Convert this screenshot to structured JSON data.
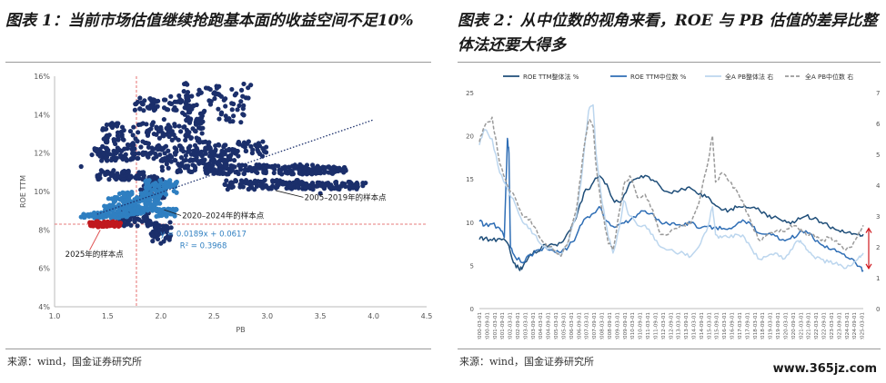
{
  "panel_left": {
    "title": "图表 1：当前市场估值继续抢跑基本面的收益空间不足10%",
    "source": "来源：wind，国金证券研究所"
  },
  "panel_right": {
    "title": "图表 2：从中位数的视角来看，ROE 与 PB 估值的差异比整体法还要大得多",
    "source": "来源：wind，国金证券研究所"
  },
  "watermark": "www.365jz.com",
  "chart_data": [
    {
      "type": "scatter",
      "xlabel": "PB",
      "ylabel": "ROE TTM",
      "xlim": [
        1.0,
        4.5
      ],
      "ylim": [
        4,
        16
      ],
      "x_ticks": [
        "1.0",
        "1.5",
        "2.0",
        "2.5",
        "3.0",
        "3.5",
        "4.0",
        "4.5"
      ],
      "y_ticks": [
        "4%",
        "6%",
        "8%",
        "10%",
        "12%",
        "14%",
        "16%"
      ],
      "colors": {
        "2005_2019": "#1b2f6b",
        "2020_2024": "#2f7fc1",
        "2025": "#c0181e",
        "ref": "#e05050"
      },
      "series": [
        {
          "name": "2005–2019年的样本点",
          "color": "#1b2f6b",
          "clusters": [
            {
              "xr": [
                1.75,
                2.3
              ],
              "yr": [
                14.2,
                15.0
              ]
            },
            {
              "xr": [
                2.2,
                2.85
              ],
              "yr": [
                13.6,
                15.7
              ]
            },
            {
              "xr": [
                1.9,
                2.4
              ],
              "yr": [
                12.6,
                13.8
              ]
            },
            {
              "xr": [
                1.45,
                1.9
              ],
              "yr": [
                12.2,
                13.6
              ]
            },
            {
              "xr": [
                1.35,
                1.75
              ],
              "yr": [
                11.6,
                12.3
              ]
            },
            {
              "xr": [
                1.75,
                2.4
              ],
              "yr": [
                11.6,
                12.4
              ]
            },
            {
              "xr": [
                2.3,
                3.0
              ],
              "yr": [
                11.8,
                12.6
              ]
            },
            {
              "xr": [
                2.0,
                2.7
              ],
              "yr": [
                11.0,
                11.7
              ]
            },
            {
              "xr": [
                2.4,
                3.0
              ],
              "yr": [
                10.9,
                11.4
              ]
            },
            {
              "xr": [
                2.9,
                3.5
              ],
              "yr": [
                10.9,
                11.4
              ]
            },
            {
              "xr": [
                3.3,
                3.75
              ],
              "yr": [
                10.9,
                11.3
              ]
            },
            {
              "xr": [
                1.4,
                1.85
              ],
              "yr": [
                10.6,
                11.1
              ]
            },
            {
              "xr": [
                2.6,
                3.3
              ],
              "yr": [
                10.1,
                10.6
              ]
            },
            {
              "xr": [
                3.2,
                3.95
              ],
              "yr": [
                10.1,
                10.5
              ]
            },
            {
              "xr": [
                1.8,
                2.05
              ],
              "yr": [
                9.6,
                10.8
              ]
            },
            {
              "xr": [
                1.6,
                1.9
              ],
              "yr": [
                8.2,
                9.0
              ]
            },
            {
              "xr": [
                1.9,
                2.1
              ],
              "yr": [
                7.4,
                8.4
              ]
            }
          ],
          "extreme_points": [
            [
              2.78,
              15.6
            ],
            [
              2.82,
              15.4
            ],
            [
              3.9,
              10.3
            ],
            [
              3.5,
              9.9
            ],
            [
              2.0,
              7.3
            ],
            [
              1.25,
              11.3
            ]
          ]
        },
        {
          "name": "2020–2024年的样本点",
          "color": "#2f7fc1",
          "clusters": [
            {
              "xr": [
                1.25,
                1.7
              ],
              "yr": [
                8.6,
                8.9
              ]
            },
            {
              "xr": [
                1.45,
                1.85
              ],
              "yr": [
                8.8,
                9.3
              ]
            },
            {
              "xr": [
                1.5,
                1.95
              ],
              "yr": [
                9.0,
                9.7
              ]
            },
            {
              "xr": [
                1.6,
                2.0
              ],
              "yr": [
                9.3,
                10.0
              ]
            },
            {
              "xr": [
                1.85,
                2.15
              ],
              "yr": [
                9.8,
                10.6
              ]
            },
            {
              "xr": [
                1.95,
                2.15
              ],
              "yr": [
                8.7,
                9.1
              ]
            }
          ]
        },
        {
          "name": "2025年的样本点",
          "color": "#c0181e",
          "clusters": [
            {
              "xr": [
                1.33,
                1.62
              ],
              "yr": [
                8.15,
                8.45
              ]
            }
          ]
        }
      ],
      "trendline": {
        "equation": "y = 0.0189x + 0.0617",
        "r2": "R² = 0.3968",
        "slope": 0.0189,
        "intercept": 0.0617,
        "x_range": [
          1.4,
          4.0
        ]
      },
      "reference_lines": {
        "x": 1.77,
        "y": 8.3
      },
      "annotations": {
        "a2005": "2005–2019年的样本点",
        "a2020": "2020–2024年的样本点",
        "a2025": "2025年的样本点"
      }
    },
    {
      "type": "line",
      "legend": [
        "ROE TTM整体法 %",
        "ROE TTM中位数 %",
        "全A PB整体法 右",
        "全A PB中位数 右"
      ],
      "legend_placement": "top",
      "left_axis": {
        "ylim": [
          0,
          25
        ],
        "ticks": [
          "0",
          "5",
          "10",
          "15",
          "20",
          "25"
        ]
      },
      "right_axis": {
        "ylim": [
          0,
          7
        ],
        "ticks": [
          "0",
          "1",
          "2",
          "3",
          "4",
          "5",
          "6",
          "7"
        ]
      },
      "x_ticks": [
        "2000-03-01",
        "2000-09-01",
        "2001-03-01",
        "2001-09-01",
        "2002-03-01",
        "2002-09-01",
        "2003-03-01",
        "2003-09-01",
        "2004-03-01",
        "2004-09-01",
        "2005-03-01",
        "2005-09-01",
        "2006-03-01",
        "2006-09-01",
        "2007-03-01",
        "2007-09-01",
        "2008-03-01",
        "2008-09-01",
        "2009-03-01",
        "2009-09-01",
        "2010-03-01",
        "2010-09-01",
        "2011-03-01",
        "2011-09-01",
        "2012-03-01",
        "2012-09-01",
        "2013-03-01",
        "2013-09-01",
        "2014-03-01",
        "2014-09-01",
        "2015-03-01",
        "2015-09-01",
        "2016-03-01",
        "2016-09-01",
        "2017-03-01",
        "2017-09-01",
        "2018-03-01",
        "2018-09-01",
        "2019-03-01",
        "2019-09-01",
        "2020-03-01",
        "2020-09-01",
        "2021-03-01",
        "2021-09-01",
        "2022-03-01",
        "2022-09-01",
        "2023-03-01",
        "2023-09-01",
        "2024-03-01",
        "2024-09-01",
        "2025-03-01"
      ],
      "series": [
        {
          "name": "ROE TTM整体法 %",
          "axis": "left",
          "color": "#1f4e79",
          "dash": "",
          "x": [
            2000.17,
            2000.5,
            2001,
            2001.5,
            2002,
            2002.4,
            2002.75,
            2003,
            2003.5,
            2004,
            2004.5,
            2005,
            2005.5,
            2006,
            2006.5,
            2007,
            2007.5,
            2008,
            2008.5,
            2009,
            2009.5,
            2010,
            2010.5,
            2011,
            2011.5,
            2012,
            2012.5,
            2013,
            2013.5,
            2014,
            2014.5,
            2015,
            2015.5,
            2016,
            2016.5,
            2017,
            2017.5,
            2018,
            2018.5,
            2019,
            2019.5,
            2020,
            2020.5,
            2021,
            2021.5,
            2022,
            2022.5,
            2023,
            2023.5,
            2024,
            2024.5,
            2025,
            2025.25
          ],
          "values": [
            8.0,
            8.1,
            7.9,
            8.1,
            7.6,
            5.3,
            4.6,
            4.8,
            6.3,
            6.6,
            7.4,
            7.4,
            7.6,
            8.9,
            10.5,
            13.4,
            14.3,
            15.4,
            14.4,
            12.3,
            12.6,
            14.6,
            15.1,
            15.4,
            14.9,
            14.1,
            13.5,
            13.6,
            13.8,
            13.9,
            13.2,
            12.9,
            12.1,
            11.4,
            11.4,
            11.7,
            11.9,
            11.7,
            11.3,
            10.6,
            10.7,
            10.1,
            9.8,
            10.5,
            10.7,
            10.4,
            10.0,
            9.5,
            9.1,
            8.8,
            8.6,
            8.6,
            8.6
          ]
        },
        {
          "name": "ROE TTM中位数 %",
          "axis": "left",
          "color": "#2f6eb5",
          "dash": "",
          "x": [
            2000.17,
            2000.5,
            2001,
            2001.5,
            2001.8,
            2002,
            2002.1,
            2002.2,
            2002.5,
            2003,
            2003.5,
            2004,
            2004.5,
            2005,
            2005.5,
            2006,
            2006.5,
            2007,
            2007.5,
            2008,
            2008.5,
            2009,
            2009.5,
            2010,
            2010.5,
            2011,
            2011.5,
            2012,
            2012.5,
            2013,
            2013.5,
            2014,
            2014.5,
            2015,
            2015.5,
            2016,
            2016.5,
            2017,
            2017.5,
            2018,
            2018.5,
            2019,
            2019.5,
            2020,
            2020.5,
            2021,
            2021.5,
            2022,
            2022.5,
            2023,
            2023.5,
            2024,
            2024.5,
            2025,
            2025.25
          ],
          "values": [
            10.1,
            9.6,
            9.8,
            9.3,
            8.2,
            19.7,
            18.0,
            7.1,
            6.0,
            5.3,
            6.2,
            6.8,
            7.1,
            6.7,
            6.5,
            7.2,
            8.4,
            10.3,
            10.9,
            11.8,
            10.1,
            9.4,
            9.9,
            10.2,
            10.9,
            11.3,
            11.0,
            10.0,
            9.8,
            9.7,
            9.6,
            9.9,
            9.3,
            9.5,
            9.4,
            9.2,
            9.3,
            9.8,
            10.1,
            9.5,
            8.7,
            8.6,
            8.4,
            8.0,
            8.1,
            8.6,
            9.0,
            8.1,
            7.4,
            6.9,
            6.6,
            6.3,
            5.8,
            4.9,
            4.4
          ]
        },
        {
          "name": "全A PB整体法 右",
          "axis": "right",
          "color": "#bcd6ee",
          "dash": "",
          "x": [
            2000.17,
            2000.5,
            2001,
            2001.5,
            2002,
            2002.5,
            2003,
            2003.5,
            2004,
            2004.5,
            2005,
            2005.5,
            2006,
            2006.5,
            2006.9,
            2007.3,
            2007.6,
            2007.8,
            2008.2,
            2008.6,
            2008.9,
            2009.3,
            2009.6,
            2010,
            2010.5,
            2011,
            2011.5,
            2012,
            2012.5,
            2013,
            2013.5,
            2014,
            2014.5,
            2015,
            2015.4,
            2015.6,
            2016,
            2016.5,
            2017,
            2017.5,
            2018,
            2018.5,
            2019,
            2019.5,
            2020,
            2020.5,
            2021,
            2021.3,
            2021.6,
            2022,
            2022.5,
            2023,
            2023.5,
            2024,
            2024.5,
            2025,
            2025.25
          ],
          "values": [
            5.3,
            5.8,
            5.5,
            4.4,
            3.9,
            3.4,
            2.8,
            2.6,
            2.2,
            2.0,
            1.9,
            1.7,
            2.2,
            3.0,
            4.5,
            6.4,
            6.6,
            5.0,
            3.4,
            2.3,
            1.8,
            2.6,
            3.5,
            3.0,
            2.7,
            2.7,
            2.4,
            2.0,
            1.9,
            1.8,
            1.8,
            1.7,
            2.0,
            2.5,
            3.3,
            2.4,
            2.3,
            2.3,
            2.4,
            2.3,
            1.9,
            1.6,
            1.7,
            1.8,
            1.6,
            1.9,
            2.2,
            2.1,
            1.9,
            1.7,
            1.6,
            1.5,
            1.5,
            1.3,
            1.4,
            1.7,
            1.8
          ]
        },
        {
          "name": "全A PB中位数 右",
          "axis": "right",
          "color": "#9a9a9a",
          "dash": "4,2",
          "x": [
            2000.17,
            2000.5,
            2001,
            2001.5,
            2002,
            2002.5,
            2003,
            2003.5,
            2004,
            2004.5,
            2005,
            2005.5,
            2006,
            2006.5,
            2006.9,
            2007.3,
            2007.6,
            2007.8,
            2008.2,
            2008.6,
            2008.9,
            2009.3,
            2009.6,
            2010,
            2010.5,
            2011,
            2011.5,
            2012,
            2012.5,
            2013,
            2013.5,
            2014,
            2014.5,
            2015,
            2015.4,
            2015.6,
            2016,
            2016.5,
            2017,
            2017.5,
            2018,
            2018.5,
            2019,
            2019.5,
            2020,
            2020.5,
            2021,
            2021.3,
            2021.6,
            2022,
            2022.5,
            2023,
            2023.5,
            2024,
            2024.5,
            2025,
            2025.25
          ],
          "values": [
            5.4,
            5.9,
            6.2,
            4.7,
            4.0,
            3.6,
            3.0,
            2.9,
            2.4,
            2.1,
            1.9,
            1.7,
            2.2,
            3.2,
            4.8,
            6.1,
            5.9,
            4.6,
            3.1,
            2.1,
            1.9,
            3.1,
            4.0,
            4.3,
            3.6,
            3.7,
            3.2,
            2.4,
            2.4,
            2.6,
            2.7,
            2.8,
            3.4,
            4.5,
            5.6,
            4.1,
            4.4,
            4.1,
            3.8,
            3.3,
            2.7,
            2.2,
            2.4,
            2.5,
            2.5,
            2.7,
            2.6,
            2.5,
            2.4,
            2.4,
            2.2,
            2.3,
            2.2,
            1.9,
            2.0,
            2.5,
            2.7
          ]
        }
      ],
      "arrows": [
        {
          "x": 2025.25,
          "from": 2.6,
          "to": 1.3,
          "axis": "right"
        }
      ]
    }
  ]
}
